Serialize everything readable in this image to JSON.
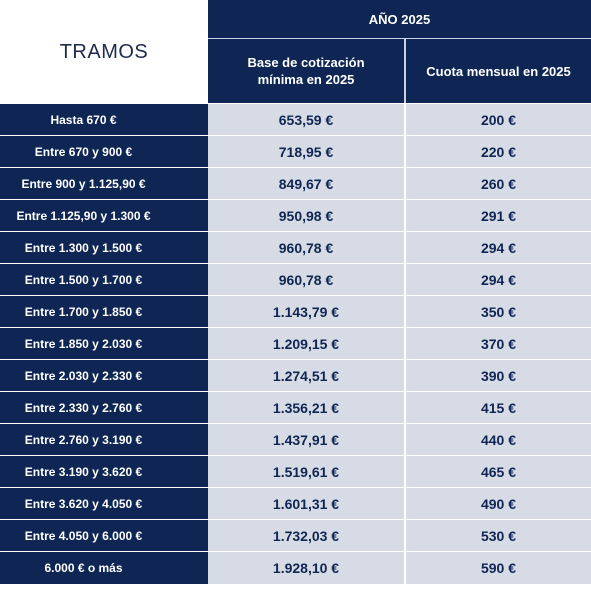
{
  "header": {
    "tramos_label": "TRAMOS",
    "year_label": "AÑO 2025",
    "col_base_label": "Base de cotización\nmínima en 2025",
    "col_cuota_label": "Cuota mensual en 2025"
  },
  "colors": {
    "navy": "#0f2655",
    "cell_bg": "#d6dbe5",
    "cell_text": "#102652"
  },
  "rows": [
    {
      "tramo": "Hasta 670 €",
      "base": "653,59 €",
      "cuota": "200 €"
    },
    {
      "tramo": "Entre 670 y 900 €",
      "base": "718,95 €",
      "cuota": "220 €"
    },
    {
      "tramo": "Entre 900 y 1.125,90 €",
      "base": "849,67 €",
      "cuota": "260 €"
    },
    {
      "tramo": "Entre 1.125,90 y 1.300 €",
      "base": "950,98 €",
      "cuota": "291 €"
    },
    {
      "tramo": "Entre 1.300 y 1.500 €",
      "base": "960,78 €",
      "cuota": "294 €"
    },
    {
      "tramo": "Entre 1.500 y 1.700 €",
      "base": "960,78 €",
      "cuota": "294 €"
    },
    {
      "tramo": "Entre 1.700 y 1.850 €",
      "base": "1.143,79 €",
      "cuota": "350 €"
    },
    {
      "tramo": "Entre 1.850 y 2.030 €",
      "base": "1.209,15 €",
      "cuota": "370 €"
    },
    {
      "tramo": "Entre 2.030 y 2.330 €",
      "base": "1.274,51 €",
      "cuota": "390 €"
    },
    {
      "tramo": "Entre 2.330 y 2.760 €",
      "base": "1.356,21 €",
      "cuota": "415 €"
    },
    {
      "tramo": "Entre 2.760 y 3.190 €",
      "base": "1.437,91 €",
      "cuota": "440 €"
    },
    {
      "tramo": "Entre 3.190 y 3.620 €",
      "base": "1.519,61 €",
      "cuota": "465 €"
    },
    {
      "tramo": "Entre 3.620 y 4.050 €",
      "base": "1.601,31 €",
      "cuota": "490 €"
    },
    {
      "tramo": "Entre 4.050 y 6.000 €",
      "base": "1.732,03 €",
      "cuota": "530 €"
    },
    {
      "tramo": "6.000 € o más",
      "base": "1.928,10 €",
      "cuota": "590 €"
    }
  ]
}
